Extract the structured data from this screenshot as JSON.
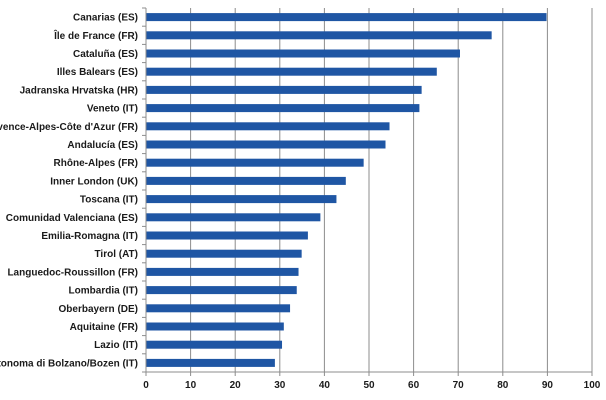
{
  "chart_data": {
    "type": "bar",
    "orientation": "horizontal",
    "title": "",
    "xlabel": "",
    "ylabel": "",
    "xlim": [
      0,
      100
    ],
    "x_ticks": [
      "0",
      "10",
      "20",
      "30",
      "40",
      "50",
      "60",
      "70",
      "80",
      "90",
      "100"
    ],
    "grid": true,
    "legend": "none",
    "bar_color": "#1f56a4",
    "categories": [
      "Canarias (ES)",
      "Île de France (FR)",
      "Cataluña (ES)",
      "Illes Balears (ES)",
      "Jadranska Hrvatska (HR)",
      "Veneto (IT)",
      "Provence-Alpes-Côte d'Azur (FR)",
      "Andalucía (ES)",
      "Rhône-Alpes (FR)",
      "Inner London (UK)",
      "Toscana (IT)",
      "Comunidad Valenciana (ES)",
      "Emilia-Romagna (IT)",
      "Tirol (AT)",
      "Languedoc-Roussillon (FR)",
      "Lombardia (IT)",
      "Oberbayern (DE)",
      "Aquitaine (FR)",
      "Lazio (IT)",
      "Autonoma di Bolzano/Bozen (IT)"
    ],
    "values": [
      89.8,
      77.5,
      70.4,
      65.2,
      61.8,
      61.3,
      54.6,
      53.7,
      48.8,
      44.8,
      42.7,
      39.1,
      36.3,
      34.9,
      34.2,
      33.8,
      32.3,
      30.9,
      30.5,
      28.9
    ]
  }
}
